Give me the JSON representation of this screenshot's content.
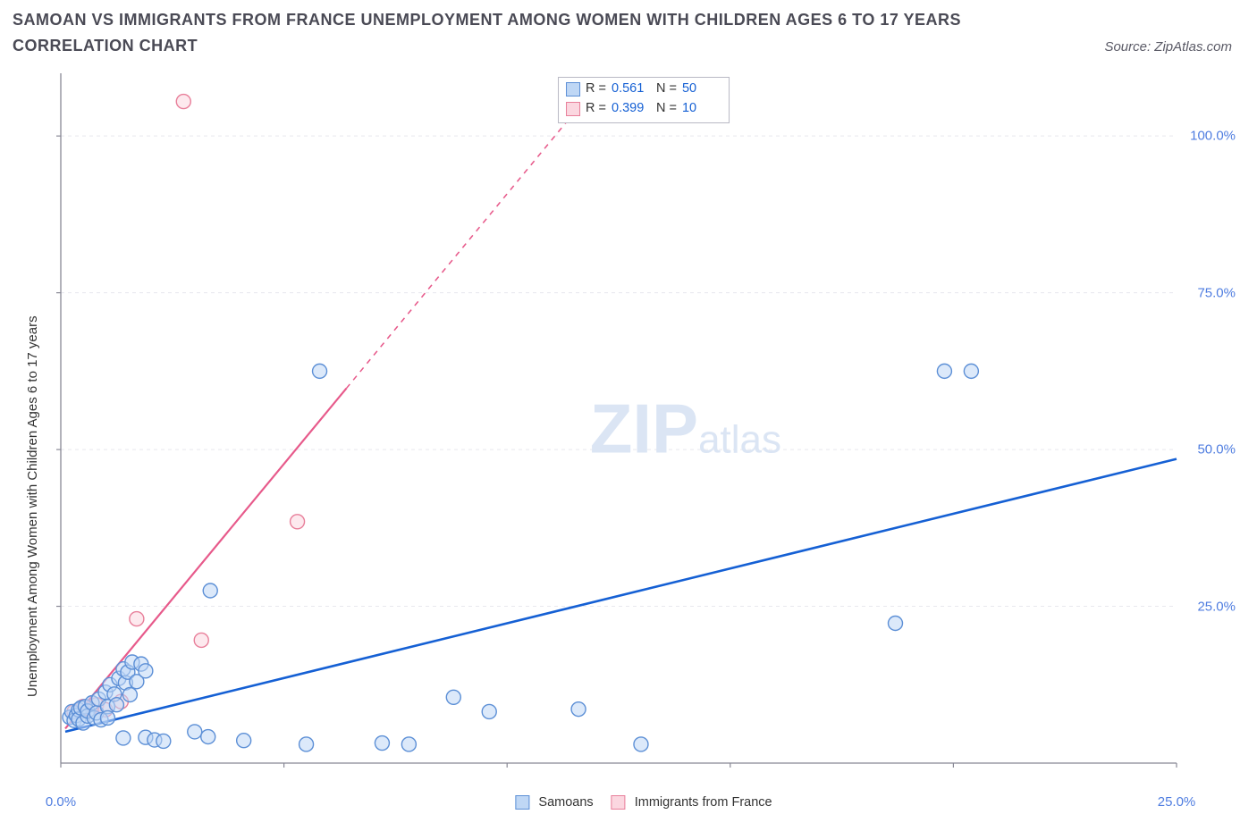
{
  "title": "SAMOAN VS IMMIGRANTS FROM FRANCE UNEMPLOYMENT AMONG WOMEN WITH CHILDREN AGES 6 TO 17 YEARS CORRELATION CHART",
  "source_label": "Source: ZipAtlas.com",
  "y_axis_label": "Unemployment Among Women with Children Ages 6 to 17 years",
  "watermark": {
    "text_big": "ZIP",
    "text_small": "atlas",
    "color": "#dbe5f4"
  },
  "chart": {
    "type": "scatter",
    "background_color": "#ffffff",
    "grid_color": "#e8e8ee",
    "axis_color": "#888895",
    "axis_tick_color": "#888895",
    "xlim": [
      0,
      25
    ],
    "ylim": [
      0,
      110
    ],
    "xticks": [
      0,
      25
    ],
    "xtick_labels": [
      "0.0%",
      "25.0%"
    ],
    "yticks": [
      25,
      50,
      75,
      100
    ],
    "ytick_labels": [
      "25.0%",
      "50.0%",
      "75.0%",
      "100.0%"
    ],
    "marker_radius": 8,
    "marker_stroke_width": 1.4,
    "series": {
      "samoans": {
        "label": "Samoans",
        "fill": "#bfd7f5",
        "stroke": "#5c8fd6",
        "fill_opacity": 0.55,
        "R": "0.561",
        "N": "50",
        "trend": {
          "x1": 0.1,
          "y1": 5.0,
          "x2": 25.0,
          "y2": 48.5,
          "solid_until_x": 25.0,
          "color": "#1560d4",
          "width": 2.6
        },
        "points": [
          [
            0.2,
            7.3
          ],
          [
            0.25,
            8.2
          ],
          [
            0.3,
            6.8
          ],
          [
            0.35,
            7.6
          ],
          [
            0.4,
            8.5
          ],
          [
            0.4,
            7.0
          ],
          [
            0.45,
            8.8
          ],
          [
            0.5,
            6.4
          ],
          [
            0.55,
            9.0
          ],
          [
            0.6,
            7.5
          ],
          [
            0.6,
            8.3
          ],
          [
            0.7,
            9.6
          ],
          [
            0.75,
            7.2
          ],
          [
            0.8,
            8.0
          ],
          [
            0.85,
            10.2
          ],
          [
            0.9,
            6.9
          ],
          [
            1.0,
            11.3
          ],
          [
            1.05,
            9.0
          ],
          [
            1.05,
            7.2
          ],
          [
            1.1,
            12.5
          ],
          [
            1.2,
            11.0
          ],
          [
            1.25,
            9.3
          ],
          [
            1.3,
            13.5
          ],
          [
            1.4,
            15.0
          ],
          [
            1.45,
            12.8
          ],
          [
            1.5,
            14.5
          ],
          [
            1.55,
            10.9
          ],
          [
            1.6,
            16.1
          ],
          [
            1.7,
            13.0
          ],
          [
            1.8,
            15.8
          ],
          [
            1.9,
            14.7
          ],
          [
            1.4,
            4.0
          ],
          [
            1.9,
            4.1
          ],
          [
            2.1,
            3.7
          ],
          [
            2.3,
            3.5
          ],
          [
            3.0,
            5.0
          ],
          [
            3.3,
            4.2
          ],
          [
            3.35,
            27.5
          ],
          [
            4.1,
            3.6
          ],
          [
            5.5,
            3.0
          ],
          [
            5.8,
            62.5
          ],
          [
            7.2,
            3.2
          ],
          [
            7.8,
            3.0
          ],
          [
            8.8,
            10.5
          ],
          [
            9.6,
            8.2
          ],
          [
            11.6,
            8.6
          ],
          [
            13.0,
            3.0
          ],
          [
            18.7,
            22.3
          ],
          [
            19.8,
            62.5
          ],
          [
            20.4,
            62.5
          ]
        ]
      },
      "france": {
        "label": "Immigrants from France",
        "fill": "#fbd7e0",
        "stroke": "#e87f9a",
        "fill_opacity": 0.55,
        "R": "0.399",
        "N": "10",
        "trend": {
          "x1": 0.1,
          "y1": 5.5,
          "x2": 12.0,
          "y2": 108.0,
          "solid_until_x": 6.4,
          "color": "#e75a8b",
          "width": 2.2
        },
        "points": [
          [
            0.3,
            8.2
          ],
          [
            0.5,
            9.0
          ],
          [
            0.65,
            8.6
          ],
          [
            0.8,
            9.3
          ],
          [
            1.0,
            8.5
          ],
          [
            1.35,
            9.8
          ],
          [
            1.7,
            23.0
          ],
          [
            3.15,
            19.6
          ],
          [
            5.3,
            38.5
          ],
          [
            2.75,
            105.5
          ]
        ]
      }
    }
  },
  "legend_top": {
    "rows": [
      {
        "swatch_fill": "#bfd7f5",
        "swatch_stroke": "#5c8fd6",
        "R": "0.561",
        "N": "50"
      },
      {
        "swatch_fill": "#fbd7e0",
        "swatch_stroke": "#e87f9a",
        "R": "0.399",
        "N": "10"
      }
    ]
  },
  "legend_bottom": {
    "items": [
      {
        "swatch_fill": "#bfd7f5",
        "swatch_stroke": "#5c8fd6",
        "label": "Samoans"
      },
      {
        "swatch_fill": "#fbd7e0",
        "swatch_stroke": "#e87f9a",
        "label": "Immigrants from France"
      }
    ]
  }
}
